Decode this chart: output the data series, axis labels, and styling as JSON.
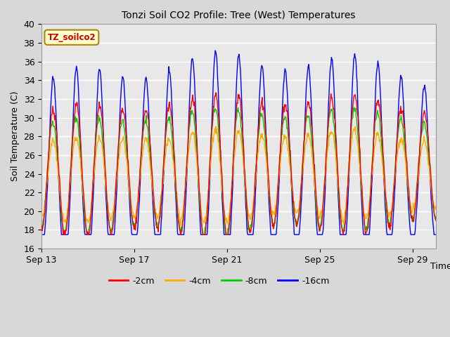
{
  "title": "Tonzi Soil CO2 Profile: Tree (West) Temperatures",
  "xlabel": "Time",
  "ylabel": "Soil Temperature (C)",
  "legend_label": "TZ_soilco2",
  "series_labels": [
    "-2cm",
    "-4cm",
    "-8cm",
    "-16cm"
  ],
  "series_colors": [
    "#ff0000",
    "#ffaa00",
    "#00cc00",
    "#0000ff"
  ],
  "ylim": [
    16,
    40
  ],
  "yticks": [
    16,
    18,
    20,
    22,
    24,
    26,
    28,
    30,
    32,
    34,
    36,
    38,
    40
  ],
  "plot_bg_color": "#e8e8e8",
  "fig_bg_color": "#d8d8d8",
  "grid_color": "#ffffff",
  "xtick_labels": [
    "Sep 13",
    "Sep 17",
    "Sep 21",
    "Sep 25",
    "Sep 29"
  ],
  "xtick_positions": [
    0,
    4,
    8,
    12,
    16
  ],
  "n_days": 17,
  "pts_per_day": 48
}
